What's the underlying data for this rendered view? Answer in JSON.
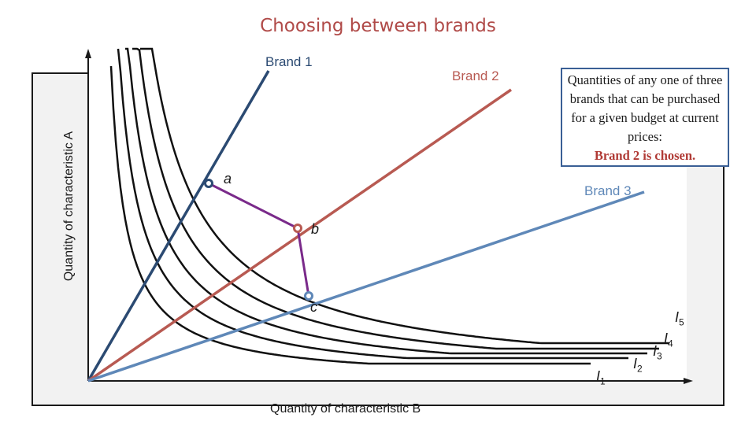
{
  "title": "Choosing between brands",
  "axes": {
    "y_label": "Quantity of characteristic A",
    "x_label": "Quantity of characteristic B"
  },
  "rays": [
    {
      "name": "Brand 1",
      "color": "#2b4a72"
    },
    {
      "name": "Brand 2",
      "color": "#b85a52"
    },
    {
      "name": "Brand 3",
      "color": "#5f88b8"
    }
  ],
  "points": [
    {
      "label": "a",
      "on": "Brand 1"
    },
    {
      "label": "b",
      "on": "Brand 2"
    },
    {
      "label": "c",
      "on": "Brand 3"
    }
  ],
  "budget_line_color": "#7a2a8a",
  "indifference_curves": [
    {
      "name": "I",
      "sub": "1"
    },
    {
      "name": "I",
      "sub": "2"
    },
    {
      "name": "I",
      "sub": "3"
    },
    {
      "name": "I",
      "sub": "4"
    },
    {
      "name": "I",
      "sub": "5"
    }
  ],
  "note": {
    "text": "Quantities of any one of three brands that can be purchased for a given budget at current prices:",
    "emphasis": "Brand 2 is chosen."
  }
}
